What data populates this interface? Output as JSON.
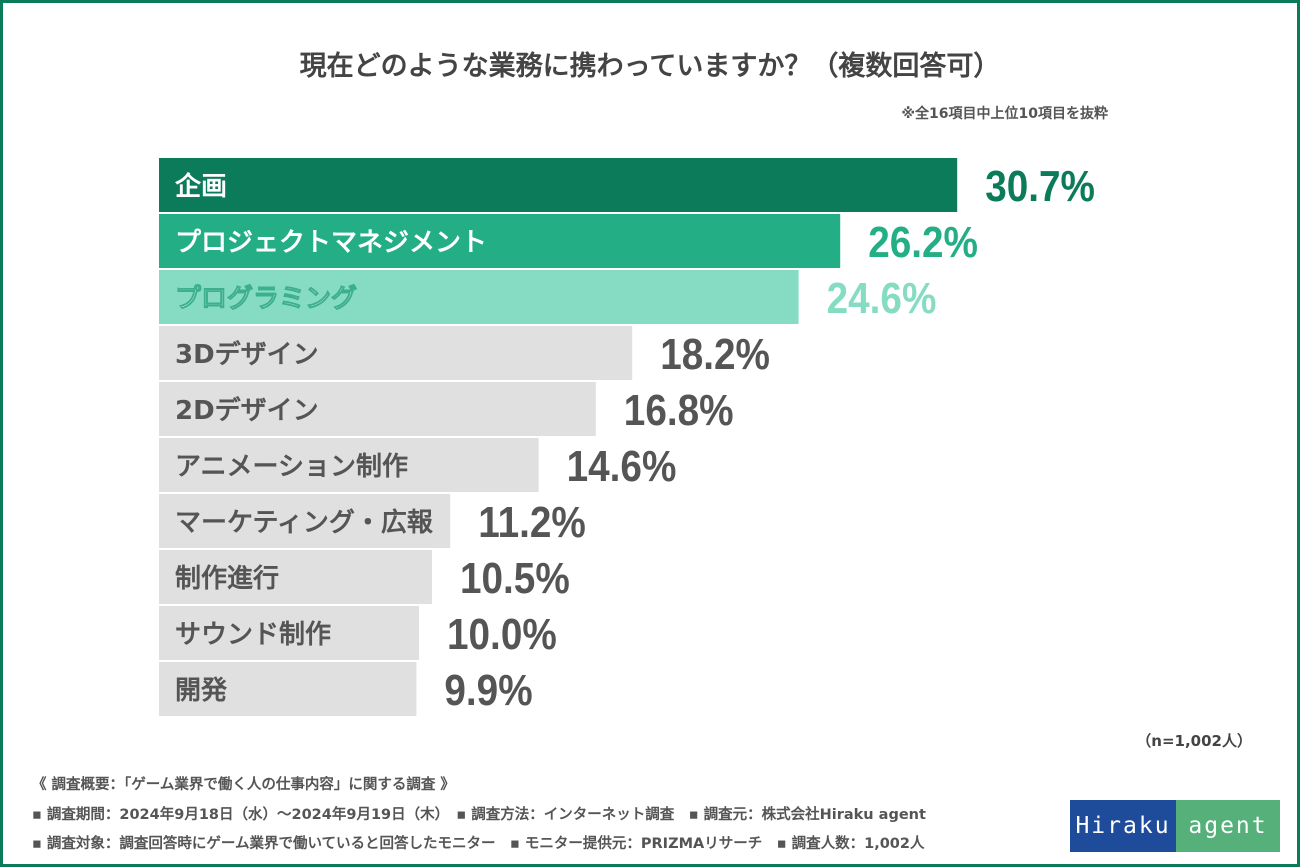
{
  "title": "現在どのような業務に携わっていますか？（複数回答可）",
  "note": "※全16項目中上位10項目を抜粋",
  "sample": "（n=1,002人）",
  "chart_data": {
    "type": "bar",
    "orientation": "horizontal",
    "title": "現在どのような業務に携わっていますか？（複数回答可）",
    "categories": [
      "企画",
      "プロジェクトマネジメント",
      "プログラミング",
      "3Dデザイン",
      "2Dデザイン",
      "アニメーション制作",
      "マーケティング・広報",
      "制作進行",
      "サウンド制作",
      "開発"
    ],
    "values": [
      30.7,
      26.2,
      24.6,
      18.2,
      16.8,
      14.6,
      11.2,
      10.5,
      10.0,
      9.9
    ],
    "value_labels": [
      "30.7%",
      "26.2%",
      "24.6%",
      "18.2%",
      "16.8%",
      "14.6%",
      "11.2%",
      "10.5%",
      "10.0%",
      "9.9%"
    ],
    "unit": "%",
    "grid": false,
    "bar_colors": [
      "#0b7b5a",
      "#23ae85",
      "#86dcc3",
      "#e0e0e0",
      "#e0e0e0",
      "#e0e0e0",
      "#e0e0e0",
      "#e0e0e0",
      "#e0e0e0",
      "#e0e0e0"
    ],
    "value_colors": [
      "#0b7b5a",
      "#23ae85",
      "#86dcc3",
      "#555555",
      "#555555",
      "#555555",
      "#555555",
      "#555555",
      "#555555",
      "#555555"
    ],
    "label_colors": [
      "#ffffff",
      "#ffffff",
      "#ffffff",
      "#555555",
      "#555555",
      "#555555",
      "#555555",
      "#555555",
      "#555555",
      "#555555"
    ]
  },
  "footer": {
    "line1": "《 調査概要：「ゲーム業界で働く人の仕事内容」に関する調査 》",
    "line2": "▪ 調査期間：2024年9月18日（水）〜2024年9月19日（木）　▪ 調査方法：インターネット調査　▪ 調査元：株式会社Hiraku agent",
    "line3": "▪ 調査対象：調査回答時にゲーム業界で働いていると回答したモニター　▪ モニター提供元：PRIZMAリサーチ　▪ 調査人数：1,002人"
  },
  "logo": {
    "part1": "Hiraku",
    "part2": "agent",
    "color1": "#1f4c9a",
    "color2": "#55b07a"
  }
}
